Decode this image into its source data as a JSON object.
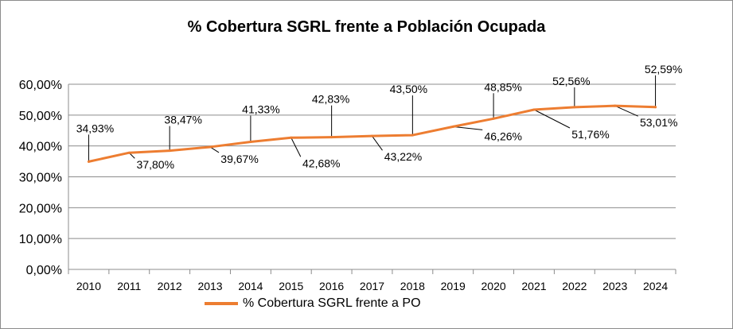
{
  "chart_data": {
    "type": "line",
    "title": "% Cobertura SGRL frente a Población Ocupada",
    "xlabel": "",
    "ylabel": "",
    "categories": [
      "2010",
      "2011",
      "2012",
      "2013",
      "2014",
      "2015",
      "2016",
      "2017",
      "2018",
      "2019",
      "2020",
      "2021",
      "2022",
      "2023",
      "2024"
    ],
    "series": [
      {
        "name": "% Cobertura SGRL frente a PO",
        "color": "#ed7d31",
        "values": [
          34.93,
          37.8,
          38.47,
          39.67,
          41.33,
          42.68,
          42.83,
          43.22,
          43.5,
          46.26,
          48.85,
          51.76,
          52.56,
          53.01,
          52.59
        ],
        "data_labels": [
          "34,93%",
          "37,80%",
          "38,47%",
          "39,67%",
          "41,33%",
          "42,68%",
          "42,83%",
          "43,22%",
          "43,50%",
          "46,26%",
          "48,85%",
          "51,76%",
          "52,56%",
          "53,01%",
          "52,59%"
        ]
      }
    ],
    "ylim": [
      0,
      60
    ],
    "y_ticks": [
      0,
      10,
      20,
      30,
      40,
      50,
      60
    ],
    "y_tick_labels": [
      "0,00%",
      "10,00%",
      "20,00%",
      "30,00%",
      "40,00%",
      "50,00%",
      "60,00%"
    ],
    "grid": true,
    "legend_position": "bottom"
  }
}
